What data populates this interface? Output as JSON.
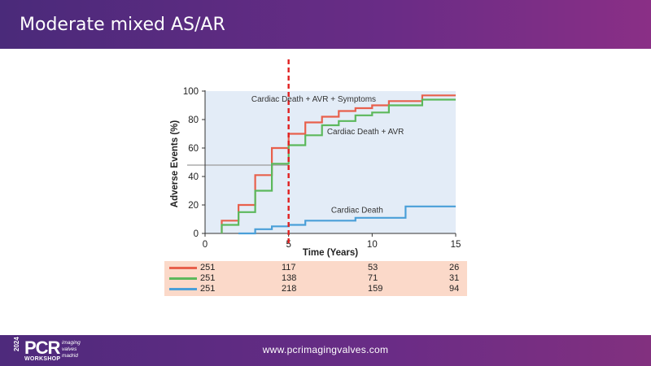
{
  "header": {
    "title": "Moderate mixed AS/AR"
  },
  "footer": {
    "url": "www.pcrimagingvalves.com",
    "logo": {
      "year": "2024",
      "brand": "PCR",
      "line1": "imaging",
      "line2": "valves",
      "line3": "madrid",
      "workshop": "WORKSHOP"
    }
  },
  "colors": {
    "symptoms": "#e8604c",
    "avr": "#5cb85c",
    "death": "#4a9fd8",
    "median_line": "#e02020",
    "plot_bg": "#e3ecf7"
  },
  "chart_data": {
    "type": "line",
    "step": true,
    "xlabel": "Time (Years)",
    "ylabel": "Adverse Events (%)",
    "xlim": [
      0,
      15
    ],
    "ylim": [
      0,
      100
    ],
    "xticks": [
      0,
      5,
      10,
      15
    ],
    "yticks": [
      0,
      20,
      40,
      60,
      80,
      100
    ],
    "reference_vline_x": 5,
    "reference_hline_y": 48,
    "series": [
      {
        "name": "Cardiac Death + AVR + Symptoms",
        "color_key": "symptoms",
        "points": [
          [
            1,
            0
          ],
          [
            1,
            9
          ],
          [
            2,
            9
          ],
          [
            2,
            20
          ],
          [
            3,
            20
          ],
          [
            3,
            41
          ],
          [
            4,
            41
          ],
          [
            4,
            60
          ],
          [
            5,
            60
          ],
          [
            5,
            70
          ],
          [
            6,
            70
          ],
          [
            6,
            78
          ],
          [
            7,
            78
          ],
          [
            7,
            82
          ],
          [
            8,
            82
          ],
          [
            8,
            86
          ],
          [
            9,
            86
          ],
          [
            9,
            88
          ],
          [
            10,
            88
          ],
          [
            10,
            90
          ],
          [
            11,
            90
          ],
          [
            11,
            93
          ],
          [
            13,
            93
          ],
          [
            13,
            97
          ],
          [
            15,
            97
          ]
        ]
      },
      {
        "name": "Cardiac Death + AVR",
        "color_key": "avr",
        "points": [
          [
            1,
            0
          ],
          [
            1,
            6
          ],
          [
            2,
            6
          ],
          [
            2,
            15
          ],
          [
            3,
            15
          ],
          [
            3,
            30
          ],
          [
            4,
            30
          ],
          [
            4,
            49
          ],
          [
            5,
            49
          ],
          [
            5,
            62
          ],
          [
            6,
            62
          ],
          [
            6,
            69
          ],
          [
            7,
            69
          ],
          [
            7,
            76
          ],
          [
            8,
            76
          ],
          [
            8,
            79
          ],
          [
            9,
            79
          ],
          [
            9,
            83
          ],
          [
            10,
            83
          ],
          [
            10,
            85
          ],
          [
            11,
            85
          ],
          [
            11,
            90
          ],
          [
            13,
            90
          ],
          [
            13,
            94
          ],
          [
            15,
            94
          ]
        ]
      },
      {
        "name": "Cardiac Death",
        "color_key": "death",
        "points": [
          [
            2,
            0
          ],
          [
            3,
            0
          ],
          [
            3,
            3
          ],
          [
            4,
            3
          ],
          [
            4,
            5
          ],
          [
            5,
            5
          ],
          [
            5,
            6
          ],
          [
            6,
            6
          ],
          [
            6,
            9
          ],
          [
            9,
            9
          ],
          [
            9,
            11
          ],
          [
            12,
            11
          ],
          [
            12,
            19
          ],
          [
            15,
            19
          ]
        ]
      }
    ],
    "annotations": [
      {
        "text": "Cardiac Death + AVR + Symptoms",
        "x": 6.5,
        "y": 95
      },
      {
        "text": "Cardiac Death + AVR",
        "x": 9.6,
        "y": 72
      },
      {
        "text": "Cardiac Death",
        "x": 9.1,
        "y": 17
      }
    ],
    "risk_table": {
      "times": [
        0,
        5,
        10,
        15
      ],
      "rows": [
        {
          "color_key": "symptoms",
          "values": [
            "251",
            "117",
            "53",
            "26"
          ]
        },
        {
          "color_key": "avr",
          "values": [
            "251",
            "138",
            "71",
            "31"
          ]
        },
        {
          "color_key": "death",
          "values": [
            "251",
            "218",
            "159",
            "94"
          ]
        }
      ]
    }
  }
}
